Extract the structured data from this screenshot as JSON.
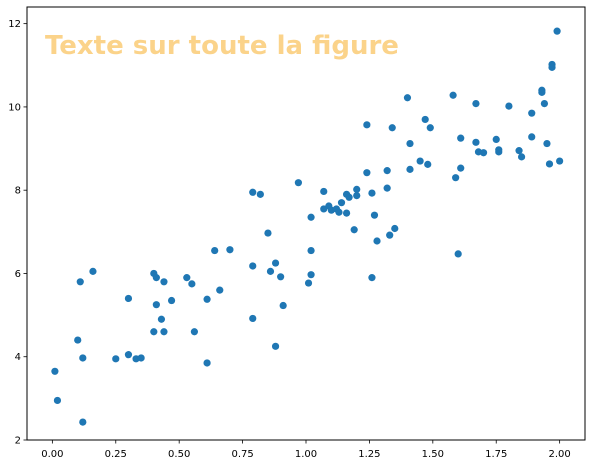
{
  "watermark": {
    "text": "Texte sur toute la figure",
    "color": "#fbd38a"
  },
  "chart_data": {
    "type": "scatter",
    "title": "",
    "xlabel": "",
    "ylabel": "",
    "xlim": [
      -0.1,
      2.1
    ],
    "ylim": [
      2,
      12.4
    ],
    "grid": false,
    "marker_color": "#1f77b4",
    "x_ticks": [
      {
        "value": 0.0,
        "label": "0.00"
      },
      {
        "value": 0.25,
        "label": "0.25"
      },
      {
        "value": 0.5,
        "label": "0.50"
      },
      {
        "value": 0.75,
        "label": "0.75"
      },
      {
        "value": 1.0,
        "label": "1.00"
      },
      {
        "value": 1.25,
        "label": "1.25"
      },
      {
        "value": 1.5,
        "label": "1.50"
      },
      {
        "value": 1.75,
        "label": "1.75"
      },
      {
        "value": 2.0,
        "label": "2.00"
      }
    ],
    "y_ticks": [
      {
        "value": 2,
        "label": "2"
      },
      {
        "value": 4,
        "label": "4"
      },
      {
        "value": 6,
        "label": "6"
      },
      {
        "value": 8,
        "label": "8"
      },
      {
        "value": 10,
        "label": "10"
      },
      {
        "value": 12,
        "label": "12"
      }
    ],
    "points": [
      {
        "x": 0.01,
        "y": 3.65
      },
      {
        "x": 0.02,
        "y": 2.95
      },
      {
        "x": 0.1,
        "y": 4.4
      },
      {
        "x": 0.11,
        "y": 5.8
      },
      {
        "x": 0.12,
        "y": 3.97
      },
      {
        "x": 0.12,
        "y": 2.43
      },
      {
        "x": 0.16,
        "y": 6.05
      },
      {
        "x": 0.25,
        "y": 3.95
      },
      {
        "x": 0.3,
        "y": 5.4
      },
      {
        "x": 0.3,
        "y": 4.05
      },
      {
        "x": 0.33,
        "y": 3.95
      },
      {
        "x": 0.35,
        "y": 3.97
      },
      {
        "x": 0.4,
        "y": 6.0
      },
      {
        "x": 0.4,
        "y": 4.6
      },
      {
        "x": 0.41,
        "y": 5.25
      },
      {
        "x": 0.41,
        "y": 5.9
      },
      {
        "x": 0.43,
        "y": 4.9
      },
      {
        "x": 0.44,
        "y": 5.8
      },
      {
        "x": 0.44,
        "y": 4.6
      },
      {
        "x": 0.47,
        "y": 5.35
      },
      {
        "x": 0.53,
        "y": 5.9
      },
      {
        "x": 0.55,
        "y": 5.75
      },
      {
        "x": 0.56,
        "y": 4.6
      },
      {
        "x": 0.61,
        "y": 5.38
      },
      {
        "x": 0.61,
        "y": 3.85
      },
      {
        "x": 0.64,
        "y": 6.55
      },
      {
        "x": 0.66,
        "y": 5.6
      },
      {
        "x": 0.7,
        "y": 6.57
      },
      {
        "x": 0.79,
        "y": 7.95
      },
      {
        "x": 0.79,
        "y": 6.18
      },
      {
        "x": 0.79,
        "y": 4.92
      },
      {
        "x": 0.82,
        "y": 7.9
      },
      {
        "x": 0.85,
        "y": 6.97
      },
      {
        "x": 0.86,
        "y": 6.05
      },
      {
        "x": 0.88,
        "y": 6.25
      },
      {
        "x": 0.88,
        "y": 4.25
      },
      {
        "x": 0.9,
        "y": 5.92
      },
      {
        "x": 0.91,
        "y": 5.23
      },
      {
        "x": 0.97,
        "y": 8.18
      },
      {
        "x": 1.01,
        "y": 5.77
      },
      {
        "x": 1.02,
        "y": 7.35
      },
      {
        "x": 1.02,
        "y": 6.55
      },
      {
        "x": 1.02,
        "y": 5.97
      },
      {
        "x": 1.07,
        "y": 7.97
      },
      {
        "x": 1.07,
        "y": 7.55
      },
      {
        "x": 1.09,
        "y": 7.62
      },
      {
        "x": 1.1,
        "y": 7.52
      },
      {
        "x": 1.12,
        "y": 7.55
      },
      {
        "x": 1.13,
        "y": 7.47
      },
      {
        "x": 1.14,
        "y": 7.7
      },
      {
        "x": 1.16,
        "y": 7.9
      },
      {
        "x": 1.16,
        "y": 7.45
      },
      {
        "x": 1.17,
        "y": 7.83
      },
      {
        "x": 1.19,
        "y": 7.05
      },
      {
        "x": 1.2,
        "y": 8.02
      },
      {
        "x": 1.2,
        "y": 7.87
      },
      {
        "x": 1.24,
        "y": 9.57
      },
      {
        "x": 1.24,
        "y": 8.42
      },
      {
        "x": 1.26,
        "y": 7.93
      },
      {
        "x": 1.26,
        "y": 5.9
      },
      {
        "x": 1.27,
        "y": 7.4
      },
      {
        "x": 1.28,
        "y": 6.78
      },
      {
        "x": 1.32,
        "y": 8.47
      },
      {
        "x": 1.32,
        "y": 8.05
      },
      {
        "x": 1.33,
        "y": 6.92
      },
      {
        "x": 1.34,
        "y": 9.5
      },
      {
        "x": 1.35,
        "y": 7.08
      },
      {
        "x": 1.4,
        "y": 10.22
      },
      {
        "x": 1.41,
        "y": 9.12
      },
      {
        "x": 1.41,
        "y": 8.5
      },
      {
        "x": 1.45,
        "y": 8.7
      },
      {
        "x": 1.47,
        "y": 9.7
      },
      {
        "x": 1.48,
        "y": 8.62
      },
      {
        "x": 1.49,
        "y": 9.5
      },
      {
        "x": 1.58,
        "y": 10.28
      },
      {
        "x": 1.59,
        "y": 8.3
      },
      {
        "x": 1.6,
        "y": 6.47
      },
      {
        "x": 1.61,
        "y": 9.25
      },
      {
        "x": 1.61,
        "y": 8.53
      },
      {
        "x": 1.67,
        "y": 10.08
      },
      {
        "x": 1.67,
        "y": 9.15
      },
      {
        "x": 1.68,
        "y": 8.92
      },
      {
        "x": 1.7,
        "y": 8.9
      },
      {
        "x": 1.75,
        "y": 9.22
      },
      {
        "x": 1.76,
        "y": 8.97
      },
      {
        "x": 1.76,
        "y": 8.92
      },
      {
        "x": 1.8,
        "y": 10.02
      },
      {
        "x": 1.84,
        "y": 8.95
      },
      {
        "x": 1.85,
        "y": 8.8
      },
      {
        "x": 1.89,
        "y": 9.85
      },
      {
        "x": 1.89,
        "y": 9.28
      },
      {
        "x": 1.93,
        "y": 10.4
      },
      {
        "x": 1.93,
        "y": 10.35
      },
      {
        "x": 1.94,
        "y": 10.08
      },
      {
        "x": 1.95,
        "y": 9.12
      },
      {
        "x": 1.96,
        "y": 8.63
      },
      {
        "x": 1.97,
        "y": 11.02
      },
      {
        "x": 1.97,
        "y": 10.95
      },
      {
        "x": 1.99,
        "y": 11.82
      },
      {
        "x": 2.0,
        "y": 8.7
      }
    ]
  }
}
